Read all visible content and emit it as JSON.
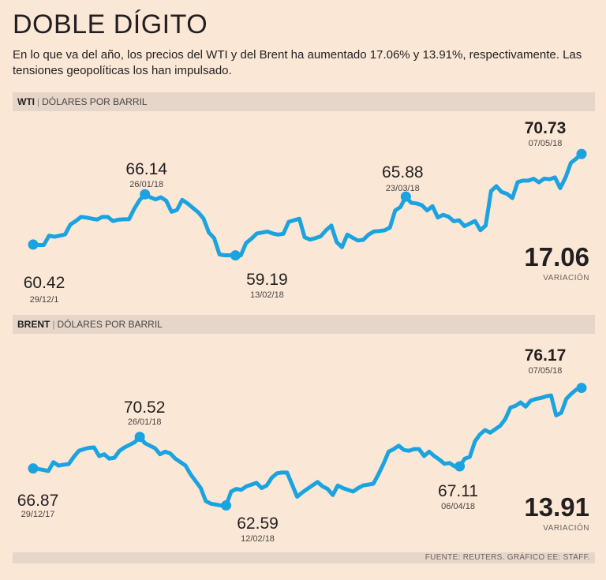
{
  "header": {
    "title": "DOBLE DÍGITO",
    "subtitle": "En lo que va del año, los precios del WTI y del Brent ha aumentado 17.06% y 13.91%, respectivamente. Las tensiones geopolíticas los han impulsado."
  },
  "colors": {
    "line": "#1aa3e0",
    "background": "#fbe7d6",
    "band": "#e6d6c9"
  },
  "chart_data": [
    {
      "type": "line",
      "code": "WTI",
      "sep": "|",
      "unit": "DÓLARES POR BARRIL",
      "ylim": [
        57,
        72
      ],
      "values": [
        60.42,
        60.37,
        60.37,
        61.44,
        61.3,
        61.44,
        61.57,
        62.7,
        63.1,
        63.57,
        63.49,
        63.37,
        63.27,
        63.57,
        63.57,
        63.1,
        63.25,
        63.3,
        63.3,
        64.5,
        65.5,
        66.14,
        65.8,
        65.56,
        65.8,
        65.4,
        64.15,
        64.36,
        65.51,
        65.1,
        64.6,
        64.1,
        63.39,
        61.79,
        61.15,
        59.29,
        59.2,
        59.2,
        59.19,
        59.19,
        60.6,
        61.1,
        61.68,
        61.79,
        61.9,
        61.68,
        61.55,
        61.64,
        63.01,
        63.18,
        63.36,
        61.25,
        60.99,
        61.15,
        61.36,
        62.04,
        62.59,
        60.71,
        60.12,
        61.55,
        61.2,
        60.88,
        60.96,
        61.55,
        61.9,
        61.96,
        62.04,
        62.34,
        64.3,
        64.7,
        65.88,
        65.17,
        65.1,
        64.9,
        64.3,
        64.8,
        63.5,
        63.8,
        63.6,
        63.07,
        63.19,
        62.52,
        62.8,
        63.11,
        62.06,
        62.59,
        66.5,
        67.07,
        66.4,
        66.2,
        65.7,
        67.53,
        67.7,
        67.7,
        67.91,
        67.5,
        67.93,
        67.85,
        68.07,
        66.84,
        68.07,
        69.72,
        70.2,
        70.73
      ],
      "annotations": [
        {
          "index": 0,
          "value": "60.42",
          "date": "29/12/1"
        },
        {
          "index": 21,
          "value": "66.14",
          "date": "26/01/18"
        },
        {
          "index": 38,
          "value": "59.19",
          "date": "13/02/18"
        },
        {
          "index": 70,
          "value": "65.88",
          "date": "23/03/18"
        },
        {
          "index": 103,
          "value": "70.73",
          "date": "07/05/18",
          "bold": true
        }
      ],
      "change": "17.06",
      "change_label": "VARIACIÓN"
    },
    {
      "type": "line",
      "code": "BRENT",
      "sep": "|",
      "unit": "DÓLARES POR BARRIL",
      "ylim": [
        61,
        77.5
      ],
      "values": [
        66.87,
        66.8,
        66.7,
        66.57,
        67.6,
        67.2,
        67.3,
        67.37,
        68.2,
        68.9,
        69.1,
        69.25,
        69.3,
        68.3,
        68.5,
        68.0,
        68.1,
        68.9,
        69.3,
        69.6,
        69.9,
        70.52,
        69.8,
        69.5,
        69.2,
        68.5,
        68.8,
        68.6,
        68.0,
        67.6,
        67.2,
        66.2,
        65.4,
        64.6,
        63.1,
        62.8,
        62.7,
        62.59,
        62.59,
        64.2,
        64.5,
        64.4,
        64.8,
        65.0,
        65.2,
        64.6,
        64.9,
        65.8,
        66.3,
        66.4,
        66.39,
        65.0,
        63.6,
        64.1,
        64.5,
        64.9,
        65.3,
        64.8,
        64.5,
        63.8,
        64.9,
        64.6,
        64.4,
        64.2,
        64.6,
        64.9,
        65.0,
        65.1,
        66.2,
        67.4,
        68.8,
        69.1,
        69.5,
        69.0,
        68.9,
        69.1,
        69.1,
        68.3,
        68.8,
        68.3,
        67.9,
        67.4,
        67.5,
        67.11,
        67.11,
        68.0,
        68.2,
        70.0,
        70.8,
        71.3,
        71.0,
        71.4,
        71.8,
        72.6,
        73.9,
        74.1,
        74.5,
        74.0,
        74.7,
        74.9,
        75.0,
        75.2,
        75.3,
        73.0,
        73.3,
        74.9,
        75.5,
        76.0,
        76.17
      ],
      "annotations": [
        {
          "index": 0,
          "value": "66.87",
          "date": "29/12/17"
        },
        {
          "index": 21,
          "value": "70.52",
          "date": "26/01/18"
        },
        {
          "index": 38,
          "value": "62.59",
          "date": "12/02/18"
        },
        {
          "index": 84,
          "value": "67.11",
          "date": "06/04/18"
        },
        {
          "index": 108,
          "value": "76.17",
          "date": "07/05/18",
          "bold": true
        }
      ],
      "change": "13.91",
      "change_label": "VARIACIÓN"
    }
  ],
  "footer": {
    "source": "FUENTE: REUTERS. GRÁFICO EE: STAFF."
  }
}
